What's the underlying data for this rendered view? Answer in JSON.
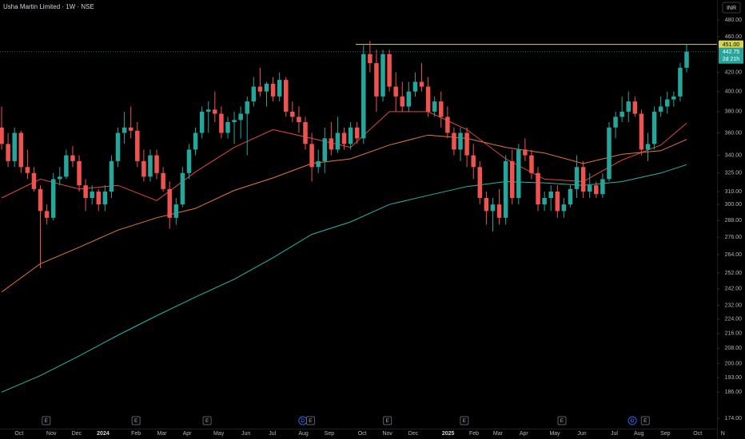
{
  "chart_data": {
    "type": "candlestick",
    "title": "Usha Martin Limited · 1W · NSE",
    "currency": "INR",
    "log_scale": true,
    "up_color": "#26a69a",
    "down_color": "#ef5350",
    "open": [
      365,
      350,
      335,
      360,
      330,
      325,
      312,
      295,
      290,
      320,
      322,
      340,
      335,
      315,
      305,
      310,
      300,
      310,
      335,
      360,
      365,
      362,
      335,
      322,
      340,
      325,
      312,
      290,
      300,
      325,
      345,
      360,
      380,
      382,
      378,
      360,
      370,
      372,
      378,
      390,
      405,
      400,
      408,
      395,
      412,
      380,
      375,
      370,
      350,
      330,
      335,
      355,
      345,
      360,
      350,
      365,
      355,
      440,
      430,
      395,
      440,
      405,
      395,
      385,
      400,
      410,
      405,
      380,
      390,
      375,
      360,
      345,
      360,
      340,
      330,
      305,
      295,
      300,
      290,
      335,
      305,
      345,
      340,
      325,
      300,
      305,
      310,
      295,
      300,
      312,
      330,
      310,
      315,
      308,
      320,
      365,
      375,
      380,
      390,
      378,
      345,
      350,
      380,
      385,
      392,
      395,
      425
    ],
    "high": [
      385,
      360,
      365,
      362,
      345,
      330,
      315,
      300,
      325,
      330,
      345,
      348,
      340,
      320,
      315,
      312,
      315,
      340,
      365,
      380,
      385,
      370,
      345,
      345,
      345,
      330,
      318,
      305,
      330,
      350,
      365,
      385,
      390,
      400,
      385,
      375,
      380,
      385,
      395,
      415,
      425,
      410,
      415,
      420,
      415,
      390,
      385,
      375,
      360,
      345,
      365,
      370,
      375,
      365,
      370,
      370,
      450,
      455,
      445,
      445,
      445,
      420,
      410,
      410,
      420,
      430,
      415,
      395,
      400,
      385,
      365,
      365,
      365,
      350,
      335,
      310,
      305,
      312,
      340,
      345,
      350,
      355,
      345,
      330,
      310,
      315,
      315,
      305,
      315,
      340,
      335,
      325,
      318,
      325,
      370,
      380,
      395,
      400,
      395,
      382,
      360,
      385,
      395,
      400,
      400,
      430,
      451
    ],
    "low": [
      345,
      330,
      330,
      325,
      320,
      310,
      255,
      285,
      288,
      315,
      320,
      330,
      310,
      295,
      300,
      295,
      295,
      305,
      330,
      350,
      355,
      330,
      318,
      318,
      320,
      310,
      282,
      285,
      298,
      320,
      340,
      355,
      360,
      370,
      355,
      355,
      350,
      355,
      340,
      385,
      395,
      385,
      390,
      390,
      375,
      370,
      360,
      345,
      318,
      325,
      325,
      340,
      342,
      345,
      345,
      350,
      350,
      420,
      380,
      390,
      400,
      380,
      380,
      380,
      395,
      400,
      375,
      375,
      365,
      355,
      340,
      335,
      330,
      320,
      300,
      285,
      280,
      285,
      285,
      300,
      300,
      335,
      320,
      295,
      295,
      295,
      290,
      290,
      298,
      305,
      305,
      305,
      305,
      305,
      318,
      355,
      370,
      370,
      375,
      340,
      335,
      345,
      375,
      378,
      385,
      390,
      420
    ],
    "close": [
      350,
      335,
      360,
      330,
      325,
      312,
      295,
      290,
      320,
      322,
      340,
      335,
      315,
      305,
      310,
      300,
      310,
      335,
      360,
      365,
      362,
      335,
      322,
      340,
      325,
      312,
      290,
      300,
      325,
      345,
      360,
      380,
      382,
      378,
      360,
      370,
      372,
      378,
      390,
      405,
      400,
      408,
      395,
      412,
      380,
      375,
      370,
      350,
      330,
      335,
      355,
      345,
      360,
      350,
      365,
      355,
      440,
      430,
      395,
      440,
      405,
      395,
      385,
      400,
      410,
      405,
      380,
      390,
      375,
      360,
      345,
      360,
      340,
      330,
      305,
      295,
      300,
      290,
      335,
      305,
      345,
      340,
      325,
      300,
      305,
      310,
      295,
      300,
      312,
      330,
      310,
      315,
      308,
      320,
      365,
      375,
      380,
      390,
      378,
      345,
      350,
      380,
      385,
      392,
      395,
      425,
      442.75
    ],
    "moving_averages": [
      {
        "color": "#e04848",
        "x": [
          0,
          6,
          12,
          18,
          24,
          30,
          36,
          42,
          48,
          54,
          60,
          66,
          72,
          78,
          84,
          90,
          96,
          102,
          106
        ],
        "values": [
          305,
          320,
          312,
          315,
          303,
          326,
          347,
          363,
          355,
          347,
          380,
          380,
          363,
          337,
          320,
          318,
          336,
          349,
          369
        ]
      },
      {
        "color": "#e07a3a",
        "x": [
          0,
          6,
          12,
          18,
          24,
          30,
          36,
          42,
          48,
          54,
          60,
          66,
          72,
          78,
          84,
          90,
          96,
          102,
          106
        ],
        "values": [
          240,
          258,
          269,
          281,
          290,
          297,
          311,
          321,
          333,
          337,
          349,
          358,
          355,
          347,
          342,
          333,
          341,
          344,
          354
        ]
      },
      {
        "color": "#26b5a8",
        "x": [
          0,
          6,
          12,
          18,
          24,
          30,
          36,
          42,
          48,
          54,
          60,
          66,
          72,
          78,
          84,
          90,
          96,
          102,
          106
        ],
        "values": [
          186,
          194,
          204,
          215,
          226,
          237,
          248,
          262,
          278,
          287,
          300,
          307,
          314,
          318,
          317,
          315,
          318,
          325,
          332
        ]
      }
    ],
    "high_line": {
      "value": 451,
      "label": "451.00",
      "color": "#d6d64a"
    },
    "countdown": "2d 21h",
    "ylim": [
      169.5,
      505
    ],
    "yticks": [
      {
        "value": 480,
        "label": "480.00"
      },
      {
        "value": 460,
        "label": "460.00"
      },
      {
        "value": 420,
        "label": "420.00"
      },
      {
        "value": 400,
        "label": "400.00"
      },
      {
        "value": 380,
        "label": "380.00"
      },
      {
        "value": 360,
        "label": "360.00"
      },
      {
        "value": 340,
        "label": "340.00"
      },
      {
        "value": 325,
        "label": "325.00"
      },
      {
        "value": 310,
        "label": "310.00"
      },
      {
        "value": 300,
        "label": "300.00"
      },
      {
        "value": 288,
        "label": "288.00"
      },
      {
        "value": 276,
        "label": "276.00"
      },
      {
        "value": 264,
        "label": "264.00"
      },
      {
        "value": 252,
        "label": "252.00"
      },
      {
        "value": 242,
        "label": "242.00"
      },
      {
        "value": 232,
        "label": "232.00"
      },
      {
        "value": 224,
        "label": "224.00"
      },
      {
        "value": 216,
        "label": "216.00"
      },
      {
        "value": 208,
        "label": "208.00"
      },
      {
        "value": 200,
        "label": "200.00"
      },
      {
        "value": 193,
        "label": "193.00"
      },
      {
        "value": 186,
        "label": "186.00"
      },
      {
        "value": 174,
        "label": "174.00"
      }
    ],
    "xlim": [
      -0.25,
      110.7
    ],
    "xticks": [
      {
        "value": 2.7,
        "label": "Oct"
      },
      {
        "value": 7.7,
        "label": "Nov"
      },
      {
        "value": 11.6,
        "label": "Dec"
      },
      {
        "value": 15.7,
        "label": "2024"
      },
      {
        "value": 20.8,
        "label": "Feb"
      },
      {
        "value": 24.8,
        "label": "Mar"
      },
      {
        "value": 28.7,
        "label": "Apr"
      },
      {
        "value": 33.6,
        "label": "May"
      },
      {
        "value": 37.8,
        "label": "Jun"
      },
      {
        "value": 41.9,
        "label": "Jul"
      },
      {
        "value": 46.7,
        "label": "Aug"
      },
      {
        "value": 50.7,
        "label": "Sep"
      },
      {
        "value": 55.8,
        "label": "Oct"
      },
      {
        "value": 59.7,
        "label": "Nov"
      },
      {
        "value": 63.7,
        "label": "Dec"
      },
      {
        "value": 69.1,
        "label": "2025"
      },
      {
        "value": 73.1,
        "label": "Feb"
      },
      {
        "value": 76.8,
        "label": "Mar"
      },
      {
        "value": 80.8,
        "label": "Apr"
      },
      {
        "value": 85.6,
        "label": "May"
      },
      {
        "value": 89.8,
        "label": "Jun"
      },
      {
        "value": 94.8,
        "label": "Jul"
      },
      {
        "value": 98.6,
        "label": "Aug"
      },
      {
        "value": 102.7,
        "label": "Sep"
      },
      {
        "value": 107.7,
        "label": "Oct"
      },
      {
        "value": 111.6,
        "label": "N"
      }
    ],
    "events": [
      {
        "value": 6.9,
        "label": "E"
      },
      {
        "value": 20.8,
        "label": "E"
      },
      {
        "value": 31.8,
        "label": "E"
      },
      {
        "value": 46.6,
        "label": "D"
      },
      {
        "value": 47.8,
        "label": "E"
      },
      {
        "value": 59.7,
        "label": "E"
      },
      {
        "value": 71.6,
        "label": "E"
      },
      {
        "value": 86.7,
        "label": "E"
      },
      {
        "value": 97.6,
        "label": "D"
      },
      {
        "value": 99.6,
        "label": "E"
      }
    ]
  }
}
